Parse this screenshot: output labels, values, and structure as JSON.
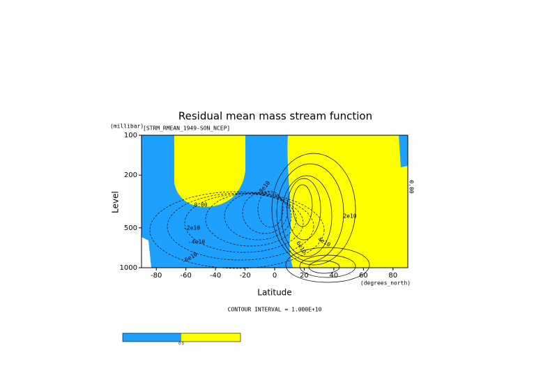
{
  "chart_data": {
    "type": "contour",
    "title": "Residual mean mass stream function",
    "subtitle": "[STRM_RMEAN_1949-SON_NCEP]",
    "x_label": "Latitude",
    "x_unit": "(degrees_north)",
    "y_label": "Level",
    "y_unit": "(millibar)",
    "xlim": [
      -90,
      90
    ],
    "xticks": [
      -80,
      -60,
      -40,
      -20,
      0,
      20,
      40,
      60,
      80
    ],
    "ylim": [
      1000,
      100
    ],
    "yticks": [
      100,
      200,
      500,
      1000
    ],
    "y_log": true,
    "negative_color": "#1ea0ff",
    "positive_color": "#ffff00",
    "annotations": [
      "0.00",
      "-2e10",
      "-4e10",
      "-6e10",
      "-8e10",
      "2e10",
      "4e10",
      "6e10",
      "0.00"
    ],
    "note": "CONTOUR INTERVAL = 1.000E+10",
    "colorbar_label": "0.0"
  }
}
